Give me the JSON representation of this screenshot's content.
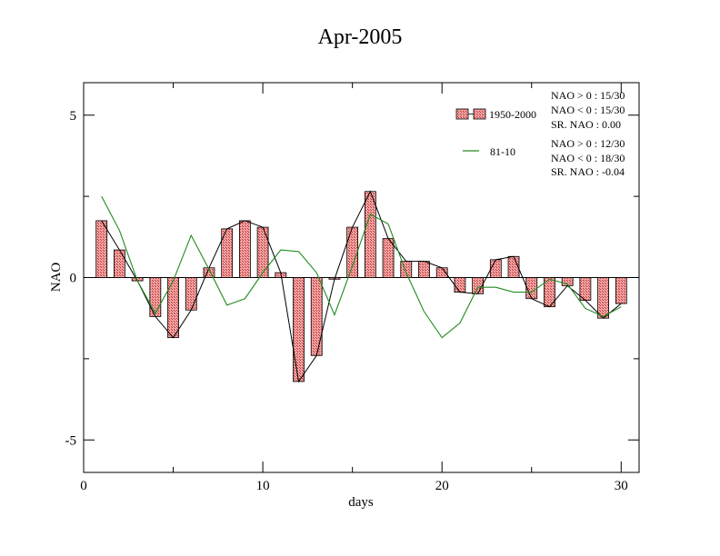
{
  "chart_data": {
    "type": "bar",
    "title": "Apr-2005",
    "xlabel": "days",
    "ylabel": "NAO",
    "xlim": [
      0,
      31
    ],
    "ylim": [
      -6,
      6
    ],
    "x_ticks": [
      0,
      10,
      20,
      30
    ],
    "y_ticks": [
      -5,
      0,
      5
    ],
    "series": [
      {
        "name": "1950-2000",
        "type": "bar",
        "x": [
          1,
          2,
          3,
          4,
          5,
          6,
          7,
          8,
          9,
          10,
          11,
          12,
          13,
          14,
          15,
          16,
          17,
          18,
          19,
          20,
          21,
          22,
          23,
          24,
          25,
          26,
          27,
          28,
          29,
          30
        ],
        "values": [
          1.75,
          0.85,
          -0.1,
          -1.2,
          -1.85,
          -1.0,
          0.3,
          1.5,
          1.75,
          1.55,
          0.15,
          -3.2,
          -2.4,
          -0.05,
          1.55,
          2.65,
          1.2,
          0.5,
          0.5,
          0.3,
          -0.45,
          -0.5,
          0.55,
          0.65,
          -0.65,
          -0.9,
          -0.25,
          -0.7,
          -1.25,
          -0.8
        ]
      },
      {
        "name": "81-10",
        "type": "line",
        "color": "#228B22",
        "x": [
          1,
          2,
          3,
          4,
          5,
          6,
          7,
          8,
          9,
          10,
          11,
          12,
          13,
          14,
          15,
          16,
          17,
          18,
          19,
          20,
          21,
          22,
          23,
          24,
          25,
          26,
          27,
          28,
          29,
          30
        ],
        "values": [
          2.5,
          1.45,
          -0.1,
          -1.1,
          -0.1,
          1.3,
          0.25,
          -0.85,
          -0.65,
          0.15,
          0.85,
          0.8,
          0.15,
          -1.15,
          0.35,
          1.95,
          1.65,
          0.15,
          -1.05,
          -1.85,
          -1.4,
          -0.3,
          -0.3,
          -0.45,
          -0.45,
          -0.05,
          -0.2,
          -0.95,
          -1.2,
          -0.9
        ]
      }
    ],
    "stats": {
      "s1950": [
        "NAO > 0 :  15/30",
        "NAO < 0 :  15/30",
        "SR. NAO :  0.00"
      ],
      "s8110": [
        "NAO > 0 : 12/30",
        "NAO < 0 : 18/30",
        "SR. NAO : -0.04"
      ]
    },
    "colors": {
      "bar_fill": "#f4a0a0",
      "bar_hatch": "#c04040",
      "line_black": "#000000",
      "line_green": "#228B22"
    },
    "grid": false,
    "legend_position": "top-right"
  }
}
